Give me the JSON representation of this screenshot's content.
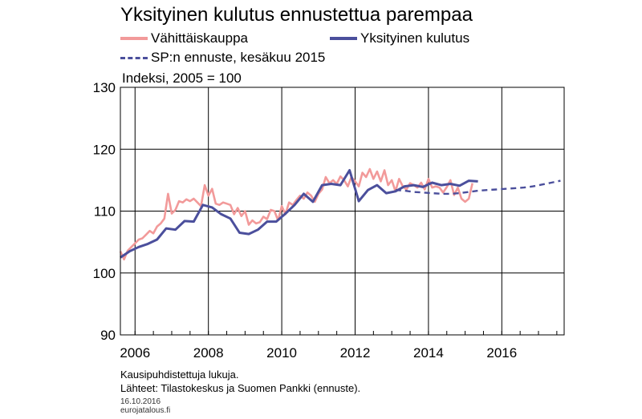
{
  "chart_data": {
    "type": "line",
    "title": "Yksityinen kulutus ennustettua parempaa",
    "unit_label": "Indeksi, 2005 = 100",
    "xlim": [
      2005.6,
      2017.7
    ],
    "ylim": [
      90,
      130
    ],
    "yticks": [
      90,
      100,
      110,
      120,
      130
    ],
    "xticks": [
      2006,
      2008,
      2010,
      2012,
      2014,
      2016
    ],
    "grid": true,
    "legend_position": "top",
    "series": [
      {
        "name": "Vähittäiskauppa",
        "color": "#f29a9a",
        "style": "solid",
        "x": [
          2005.6,
          2005.7,
          2005.8,
          2005.9,
          2006.0,
          2006.1,
          2006.2,
          2006.3,
          2006.4,
          2006.5,
          2006.6,
          2006.7,
          2006.8,
          2006.9,
          2007.0,
          2007.1,
          2007.2,
          2007.3,
          2007.4,
          2007.5,
          2007.6,
          2007.7,
          2007.8,
          2007.9,
          2008.0,
          2008.1,
          2008.2,
          2008.3,
          2008.4,
          2008.5,
          2008.6,
          2008.7,
          2008.8,
          2008.9,
          2009.0,
          2009.1,
          2009.2,
          2009.3,
          2009.4,
          2009.5,
          2009.6,
          2009.7,
          2009.8,
          2009.9,
          2010.0,
          2010.1,
          2010.2,
          2010.3,
          2010.4,
          2010.5,
          2010.6,
          2010.7,
          2010.8,
          2010.9,
          2011.0,
          2011.1,
          2011.2,
          2011.3,
          2011.4,
          2011.5,
          2011.6,
          2011.7,
          2011.8,
          2011.9,
          2012.0,
          2012.1,
          2012.2,
          2012.3,
          2012.4,
          2012.5,
          2012.6,
          2012.7,
          2012.8,
          2012.9,
          2013.0,
          2013.1,
          2013.2,
          2013.3,
          2013.4,
          2013.5,
          2013.6,
          2013.7,
          2013.8,
          2013.9,
          2014.0,
          2014.1,
          2014.2,
          2014.3,
          2014.4,
          2014.5,
          2014.6,
          2014.7,
          2014.8,
          2014.9,
          2015.0,
          2015.1,
          2015.2
        ],
        "y": [
          103.5,
          102.2,
          103.6,
          104.2,
          104.8,
          105.4,
          105.6,
          106.2,
          106.8,
          106.4,
          107.5,
          108.0,
          108.8,
          112.8,
          109.6,
          110.2,
          111.6,
          111.4,
          111.9,
          111.6,
          112.0,
          111.4,
          110.8,
          114.2,
          112.5,
          113.6,
          111.2,
          111.0,
          111.4,
          111.2,
          111.0,
          109.5,
          110.5,
          109.2,
          110.0,
          107.8,
          108.5,
          108.0,
          108.2,
          109.1,
          108.7,
          110.2,
          110.0,
          108.5,
          110.8,
          109.5,
          111.4,
          111.0,
          111.8,
          112.5,
          112.0,
          113.0,
          112.5,
          111.5,
          112.8,
          113.5,
          115.5,
          114.5,
          115.0,
          114.4,
          115.6,
          115.0,
          114.0,
          115.5,
          114.8,
          114.0,
          116.2,
          115.5,
          116.8,
          115.2,
          116.4,
          114.8,
          116.6,
          114.2,
          115.0,
          113.2,
          115.2,
          114.0,
          113.5,
          114.5,
          114.2,
          113.8,
          114.6,
          113.5,
          115.2,
          113.8,
          114.0,
          113.8,
          113.0,
          113.9,
          115.0,
          112.6,
          113.8,
          112.0,
          111.5,
          112.0,
          114.5
        ]
      },
      {
        "name": "Yksityinen kulutus",
        "color": "#4b4f9c",
        "style": "solid",
        "x": [
          2005.6,
          2005.85,
          2006.1,
          2006.35,
          2006.6,
          2006.85,
          2007.1,
          2007.35,
          2007.6,
          2007.85,
          2008.1,
          2008.35,
          2008.6,
          2008.85,
          2009.1,
          2009.35,
          2009.6,
          2009.85,
          2010.1,
          2010.35,
          2010.6,
          2010.85,
          2011.1,
          2011.35,
          2011.6,
          2011.85,
          2012.1,
          2012.35,
          2012.6,
          2012.85,
          2013.1,
          2013.35,
          2013.6,
          2013.85,
          2014.1,
          2014.35,
          2014.6,
          2014.85,
          2015.1,
          2015.35
        ],
        "y": [
          102.5,
          103.5,
          104.2,
          104.7,
          105.4,
          107.2,
          107.0,
          108.4,
          108.3,
          111.0,
          110.6,
          109.5,
          108.8,
          106.5,
          106.3,
          107.0,
          108.3,
          108.3,
          109.6,
          111.0,
          112.8,
          111.5,
          114.2,
          114.4,
          114.2,
          116.6,
          111.6,
          113.4,
          114.2,
          112.9,
          113.2,
          114.0,
          114.2,
          113.9,
          114.6,
          114.2,
          114.4,
          114.1,
          114.9,
          114.8
        ]
      },
      {
        "name": "SP:n ennuste, kesäkuu 2015",
        "color": "#4b4f9c",
        "style": "dashed",
        "x": [
          2013.1,
          2013.35,
          2013.6,
          2013.85,
          2014.1,
          2014.35,
          2014.6,
          2014.85,
          2015.1,
          2015.35,
          2015.6,
          2015.85,
          2016.1,
          2016.35,
          2016.6,
          2016.85,
          2017.1,
          2017.35,
          2017.6
        ],
        "y": [
          113.4,
          113.3,
          113.1,
          113.0,
          112.9,
          112.8,
          112.8,
          112.9,
          113.1,
          113.3,
          113.4,
          113.5,
          113.6,
          113.7,
          113.8,
          114.0,
          114.3,
          114.6,
          114.9
        ]
      }
    ]
  },
  "notes": {
    "line1": "Kausipuhdistettuja lukuja.",
    "line2": "Lähteet: Tilastokeskus ja Suomen Pankki (ennuste).",
    "date": "16.10.2016",
    "source": "eurojatalous.fi"
  }
}
